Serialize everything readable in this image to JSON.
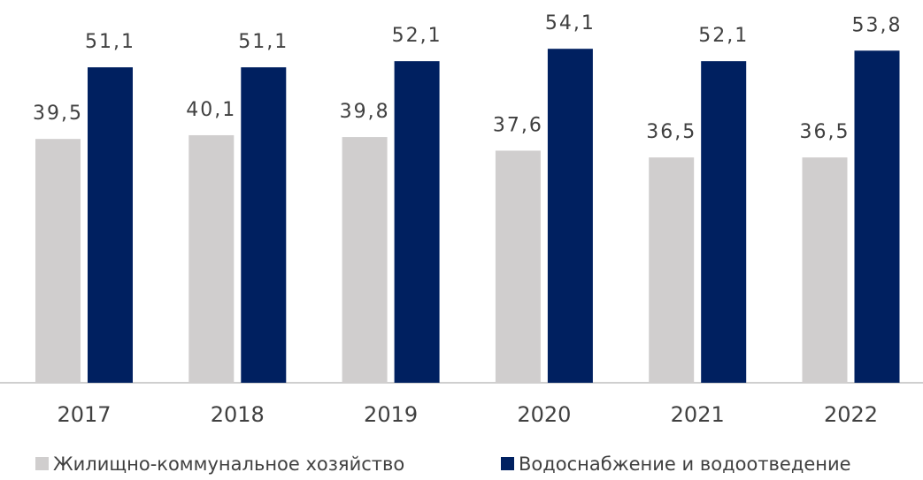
{
  "chart_data": {
    "type": "bar",
    "categories": [
      "2017",
      "2018",
      "2019",
      "2020",
      "2021",
      "2022"
    ],
    "series": [
      {
        "name": "Жилищно-коммунальное хозяйство",
        "color": "#d0cece",
        "values": [
          39.5,
          40.1,
          39.8,
          37.6,
          36.5,
          36.5
        ],
        "value_labels": [
          "39,5",
          "40,1",
          "39,8",
          "37,6",
          "36,5",
          "36,5"
        ]
      },
      {
        "name": "Водоснабжение и водоотведение",
        "color": "#002060",
        "values": [
          51.1,
          51.1,
          52.1,
          54.1,
          52.1,
          53.8
        ],
        "value_labels": [
          "51,1",
          "51,1",
          "52,1",
          "54,1",
          "52,1",
          "53,8"
        ]
      }
    ],
    "ylim": [
      0,
      60
    ],
    "grid": false
  }
}
